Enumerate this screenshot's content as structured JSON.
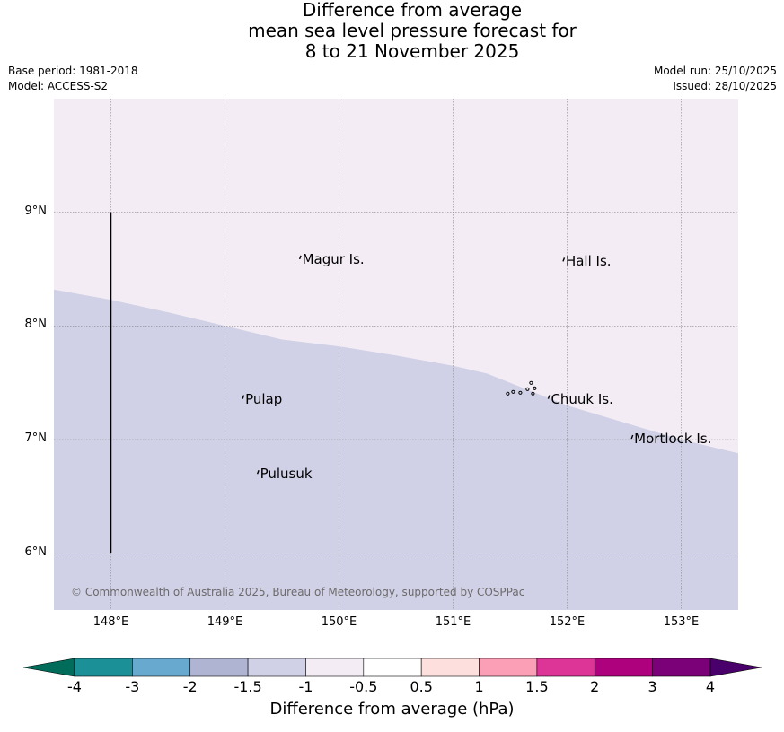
{
  "title": {
    "line1": "Difference from average",
    "line2": "mean sea level pressure forecast for",
    "line3": "8 to 21 November 2025"
  },
  "meta": {
    "base_period": "Base period: 1981-2018",
    "model": "Model: ACCESS-S2",
    "model_run": "Model run: 25/10/2025",
    "issued": "Issued: 28/10/2025"
  },
  "map": {
    "lon_range": [
      147.5,
      153.5
    ],
    "lat_range": [
      5.5,
      10.0
    ],
    "lat_ticks": [
      {
        "value": 9,
        "label": "9°N"
      },
      {
        "value": 8,
        "label": "8°N"
      },
      {
        "value": 7,
        "label": "7°N"
      },
      {
        "value": 6,
        "label": "6°N"
      }
    ],
    "lon_ticks": [
      {
        "value": 148,
        "label": "148°E"
      },
      {
        "value": 149,
        "label": "149°E"
      },
      {
        "value": 150,
        "label": "150°E"
      },
      {
        "value": 151,
        "label": "151°E"
      },
      {
        "value": 152,
        "label": "152°E"
      },
      {
        "value": 153,
        "label": "153°E"
      }
    ],
    "grid": true,
    "background_color": "#f3ecf5",
    "region_color": "#d0d1e6",
    "contour_boundary": [
      [
        147.5,
        8.32
      ],
      [
        148.0,
        8.23
      ],
      [
        148.5,
        8.12
      ],
      [
        149.0,
        8.0
      ],
      [
        149.5,
        7.88
      ],
      [
        150.0,
        7.82
      ],
      [
        150.5,
        7.74
      ],
      [
        151.0,
        7.65
      ],
      [
        151.3,
        7.58
      ],
      [
        151.6,
        7.46
      ],
      [
        152.0,
        7.3
      ],
      [
        152.5,
        7.15
      ],
      [
        153.0,
        7.0
      ],
      [
        153.5,
        6.88
      ]
    ],
    "meridian_line": {
      "lon": 148.0,
      "lat_from": 6.0,
      "lat_to": 9.0
    },
    "places": [
      {
        "name": "Magur Is.",
        "lon": 149.67,
        "lat": 8.58
      },
      {
        "name": "Hall Is.",
        "lon": 151.98,
        "lat": 8.56
      },
      {
        "name": "Pulap",
        "lon": 149.17,
        "lat": 7.35
      },
      {
        "name": "Chuuk Is.",
        "lon": 151.85,
        "lat": 7.35
      },
      {
        "name": "Mortlock Is.",
        "lon": 152.58,
        "lat": 7.0
      },
      {
        "name": "Pulusuk",
        "lon": 149.3,
        "lat": 6.69
      }
    ],
    "copyright": "© Commonwealth of Australia 2025, Bureau of Meteorology, supported by COSPPac"
  },
  "colorbar": {
    "title": "Difference from average (hPa)",
    "ticks": [
      "-4",
      "-3",
      "-2",
      "-1.5",
      "-1",
      "-0.5",
      "0.5",
      "1",
      "1.5",
      "2",
      "3",
      "4"
    ],
    "colors": [
      "#1b9096",
      "#67a9cf",
      "#aeb4d2",
      "#d0d1e6",
      "#f3ecf5",
      "#ffffff",
      "#fde0dd",
      "#fa9fb5",
      "#dd3497",
      "#ae017e",
      "#7a0177"
    ],
    "under_color": "#016c59",
    "over_color": "#49006a"
  }
}
